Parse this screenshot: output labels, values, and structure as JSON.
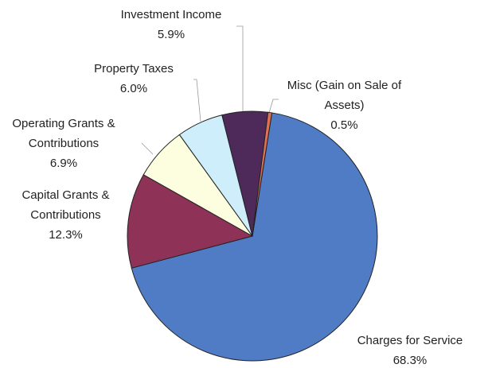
{
  "chart_data": {
    "type": "pie",
    "categories": [
      "Charges for Service",
      "Capital Grants & Contributions",
      "Operating Grants & Contributions",
      "Property Taxes",
      "Investment Income",
      "Misc (Gain on Sale of Assets)"
    ],
    "values": [
      68.3,
      12.3,
      6.9,
      6.0,
      5.9,
      0.5
    ],
    "value_labels": [
      "68.3%",
      "12.3%",
      "6.9%",
      "6.0%",
      "5.9%",
      "0.5%"
    ],
    "colors": [
      "#4f7cc4",
      "#8e3357",
      "#fdfde0",
      "#cdeefa",
      "#4e2a5a",
      "#e07050"
    ]
  }
}
